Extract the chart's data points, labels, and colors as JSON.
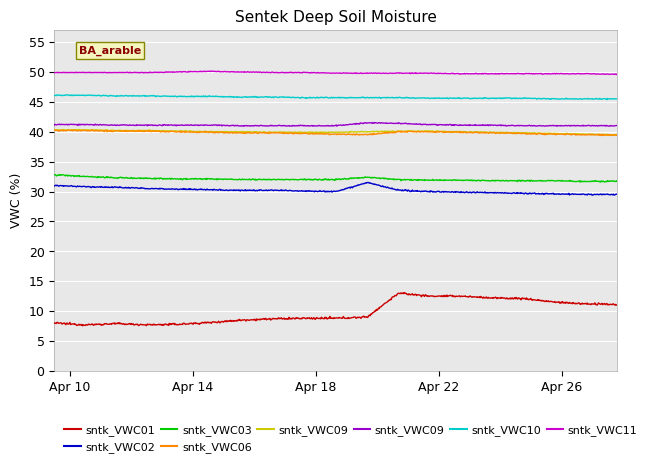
{
  "title": "Sentek Deep Soil Moisture",
  "ylabel": "VWC (%)",
  "annotation": "BA_arable",
  "ylim": [
    0,
    57
  ],
  "yticks": [
    0,
    5,
    10,
    15,
    20,
    25,
    30,
    35,
    40,
    45,
    50,
    55
  ],
  "bg_color": "#e8e8e8",
  "xstart": 9.5,
  "xend": 27.8,
  "xtick_positions": [
    10,
    14,
    18,
    22,
    26
  ],
  "xtick_labels": [
    "Apr 10",
    "Apr 14",
    "Apr 18",
    "Apr 22",
    "Apr 26"
  ],
  "spike_day": 21.8,
  "legend": [
    {
      "label": "sntk_VWC01",
      "color": "#cc0000"
    },
    {
      "label": "sntk_VWC02",
      "color": "#0000cc"
    },
    {
      "label": "sntk_VWC03",
      "color": "#00cc00"
    },
    {
      "label": "sntk_VWC06",
      "color": "#ff8800"
    },
    {
      "label": "sntk_VWC09",
      "color": "#cccc00"
    },
    {
      "label": "sntk_VWC09",
      "color": "#9900cc"
    },
    {
      "label": "sntk_VWC10",
      "color": "#00cccc"
    },
    {
      "label": "sntk_VWC11",
      "color": "#cc00cc"
    }
  ]
}
